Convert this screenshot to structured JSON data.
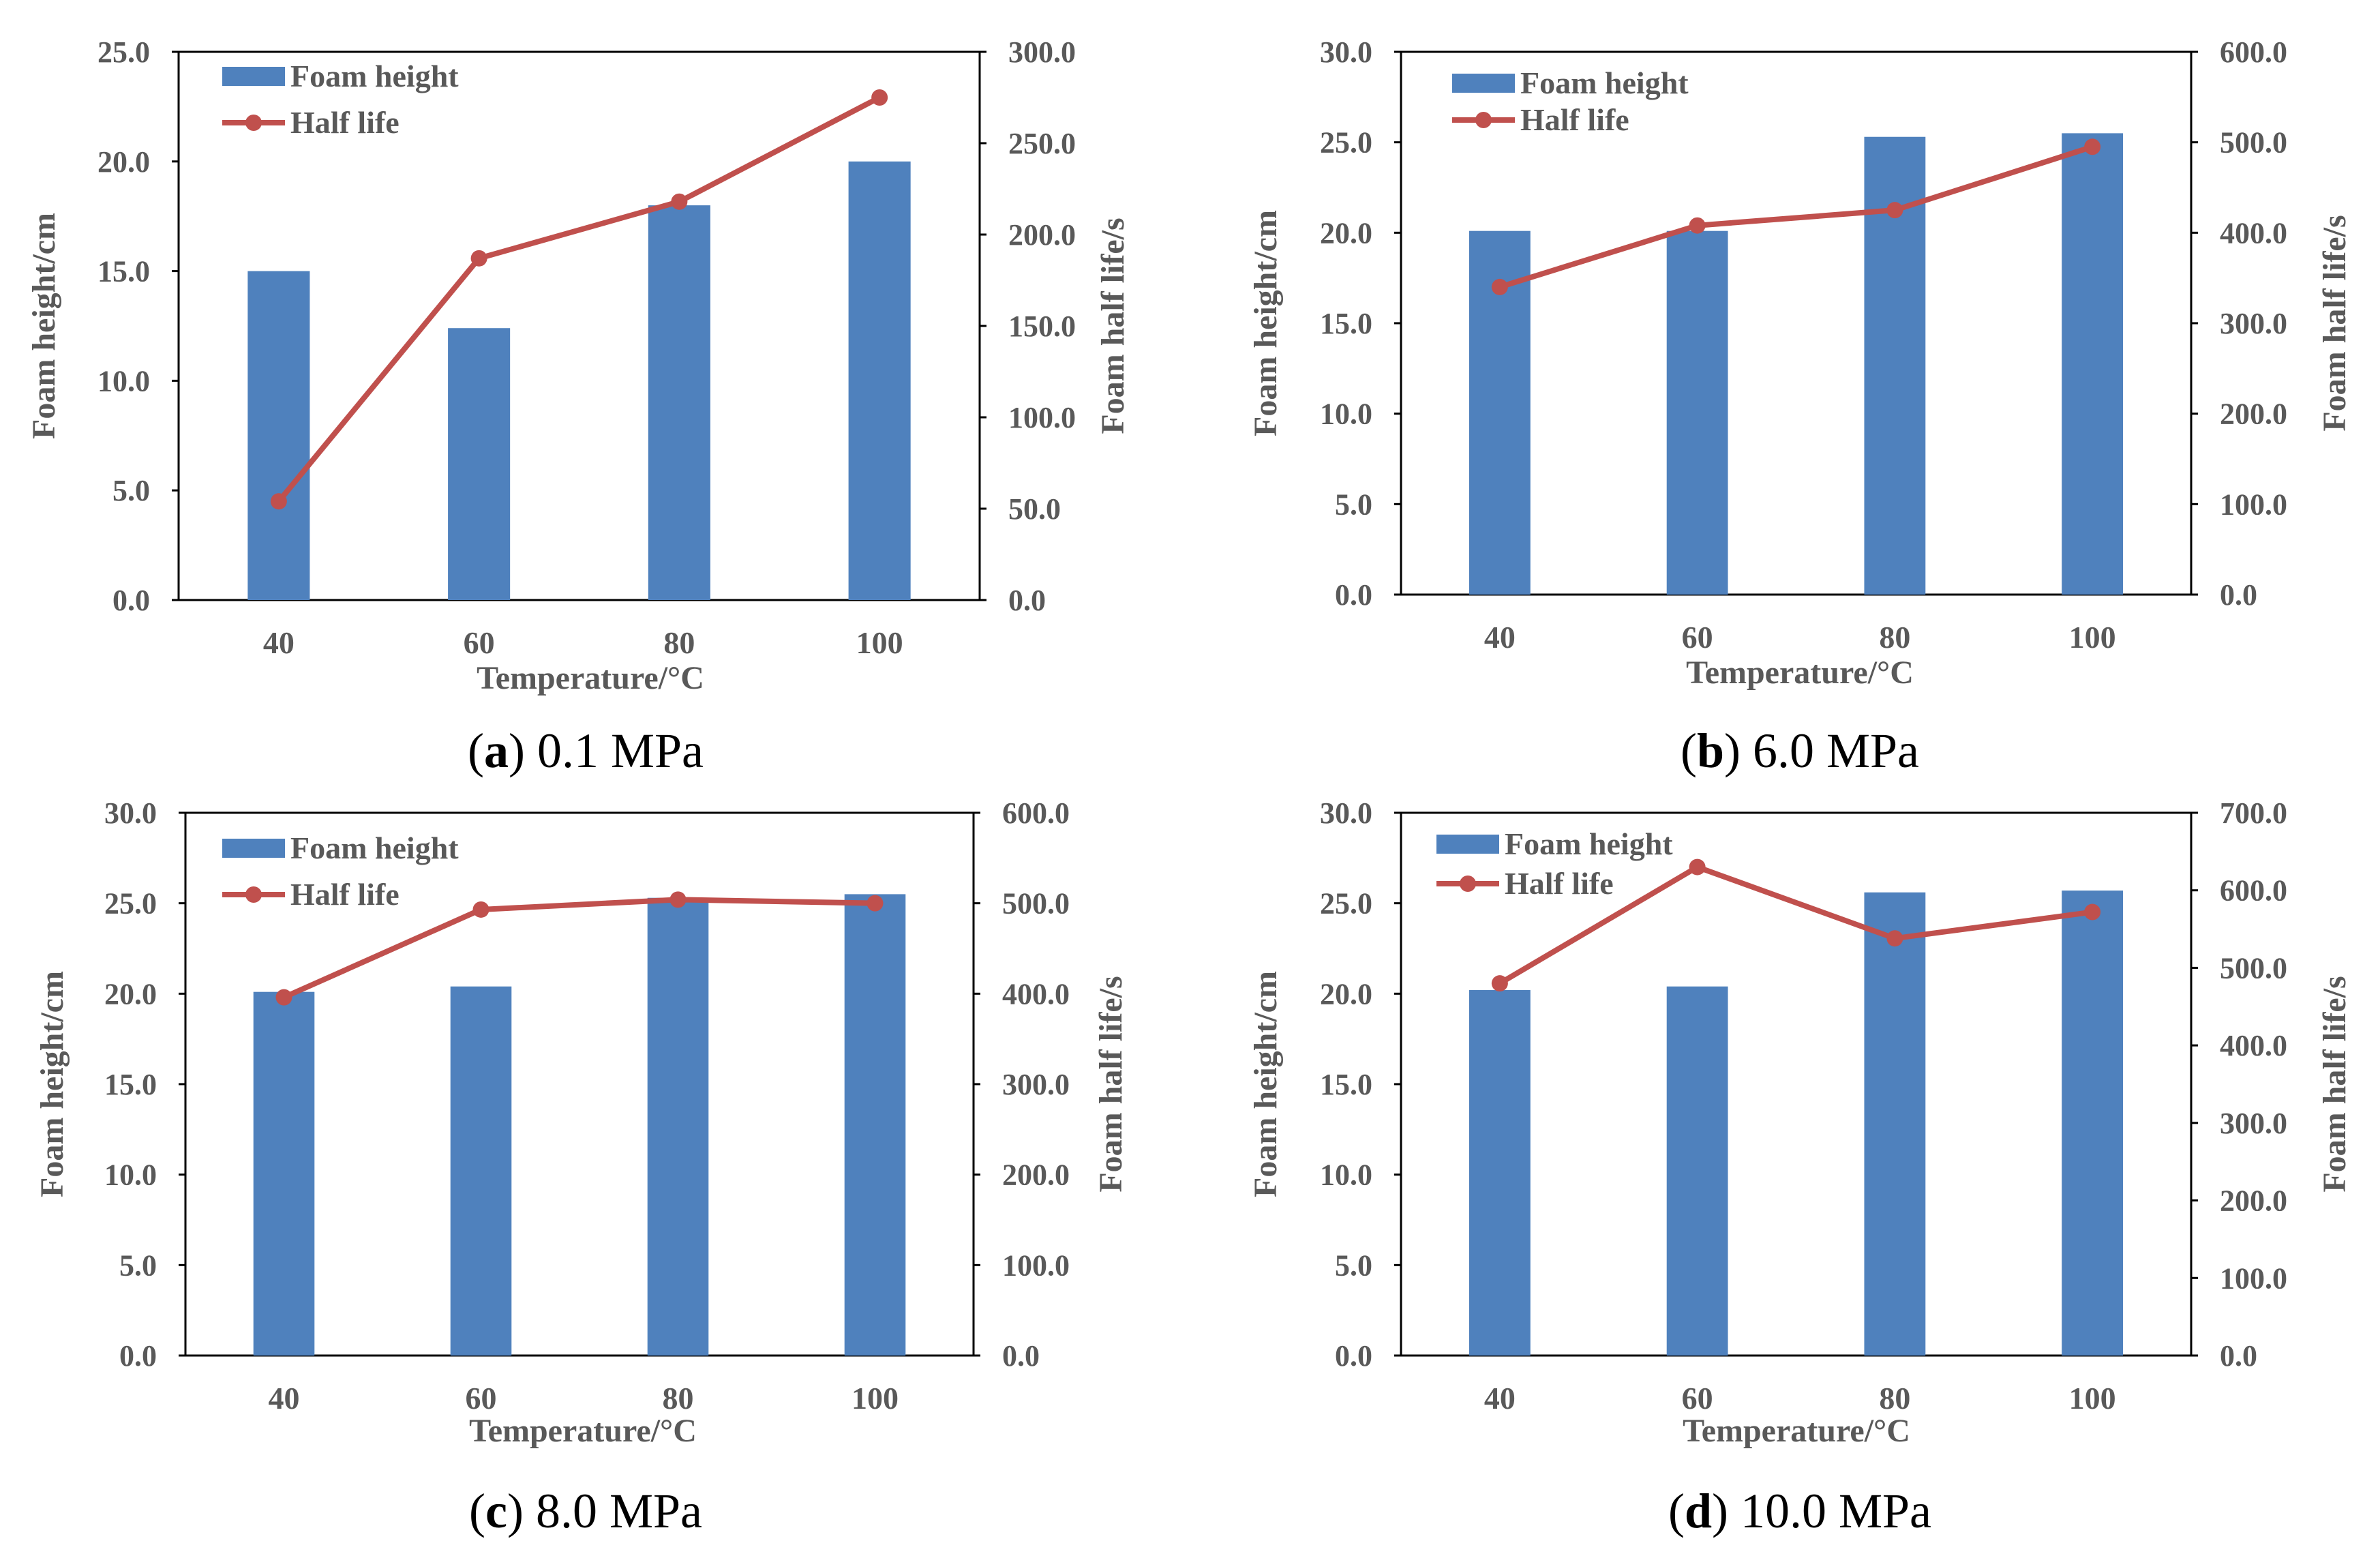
{
  "colors": {
    "bar": "#4F81BD",
    "line": "#C0504D",
    "axis": "#000000",
    "text": "#595959"
  },
  "charts": [
    {
      "id": "a",
      "caption_letter": "a",
      "caption_rest": " 0.1 MPa",
      "chart_data": {
        "type": "bar",
        "categories": [
          "40",
          "60",
          "80",
          "100"
        ],
        "series": [
          {
            "name": "Foam height",
            "kind": "bar",
            "axis": "left",
            "values": [
              15.0,
              12.4,
              18.0,
              20.0
            ]
          },
          {
            "name": "Half life",
            "kind": "line",
            "axis": "right",
            "values": [
              54,
              187,
              218,
              275
            ]
          }
        ],
        "xlabel": "Temperature/°C",
        "ylabel": "Foam height/cm",
        "y2label": "Foam half life/s",
        "ylim": [
          0,
          25
        ],
        "y2lim": [
          0,
          300
        ],
        "yticks": [
          "0.0",
          "5.0",
          "10.0",
          "15.0",
          "20.0",
          "25.0"
        ],
        "y2ticks": [
          "0.0",
          "50.0",
          "100.0",
          "150.0",
          "200.0",
          "250.0",
          "300.0"
        ],
        "legend": "top-left"
      }
    },
    {
      "id": "b",
      "caption_letter": "b",
      "caption_rest": " 6.0 MPa",
      "chart_data": {
        "type": "bar",
        "categories": [
          "40",
          "60",
          "80",
          "100"
        ],
        "series": [
          {
            "name": "Foam height",
            "kind": "bar",
            "axis": "left",
            "values": [
              20.1,
              20.1,
              25.3,
              25.5
            ]
          },
          {
            "name": "Half life",
            "kind": "line",
            "axis": "right",
            "values": [
              340,
              408,
              425,
              495
            ]
          }
        ],
        "xlabel": "Temperature/°C",
        "ylabel": "Foam height/cm",
        "y2label": "Foam half life/s",
        "ylim": [
          0,
          30
        ],
        "y2lim": [
          0,
          600
        ],
        "yticks": [
          "0.0",
          "5.0",
          "10.0",
          "15.0",
          "20.0",
          "25.0",
          "30.0"
        ],
        "y2ticks": [
          "0.0",
          "100.0",
          "200.0",
          "300.0",
          "400.0",
          "500.0",
          "600.0"
        ],
        "legend": "top-left"
      }
    },
    {
      "id": "c",
      "caption_letter": "c",
      "caption_rest": " 8.0 MPa",
      "chart_data": {
        "type": "bar",
        "categories": [
          "40",
          "60",
          "80",
          "100"
        ],
        "series": [
          {
            "name": "Foam height",
            "kind": "bar",
            "axis": "left",
            "values": [
              20.1,
              20.4,
              25.3,
              25.5
            ]
          },
          {
            "name": "Half life",
            "kind": "line",
            "axis": "right",
            "values": [
              396,
              493,
              504,
              500
            ]
          }
        ],
        "xlabel": "Temperature/°C",
        "ylabel": "Foam height/cm",
        "y2label": "Foam half life/s",
        "ylim": [
          0,
          30
        ],
        "y2lim": [
          0,
          600
        ],
        "yticks": [
          "0.0",
          "5.0",
          "10.0",
          "15.0",
          "20.0",
          "25.0",
          "30.0"
        ],
        "y2ticks": [
          "0.0",
          "100.0",
          "200.0",
          "300.0",
          "400.0",
          "500.0",
          "600.0"
        ],
        "legend": "top-left"
      }
    },
    {
      "id": "d",
      "caption_letter": "d",
      "caption_rest": " 10.0 MPa",
      "chart_data": {
        "type": "bar",
        "categories": [
          "40",
          "60",
          "80",
          "100"
        ],
        "series": [
          {
            "name": "Foam height",
            "kind": "bar",
            "axis": "left",
            "values": [
              20.2,
              20.4,
              25.6,
              25.7
            ]
          },
          {
            "name": "Half life",
            "kind": "line",
            "axis": "right",
            "values": [
              480,
              630,
              538,
              572
            ]
          }
        ],
        "xlabel": "Temperature/°C",
        "ylabel": "Foam height/cm",
        "y2label": "Foam half life/s",
        "ylim": [
          0,
          30
        ],
        "y2lim": [
          0,
          700
        ],
        "yticks": [
          "0.0",
          "5.0",
          "10.0",
          "15.0",
          "20.0",
          "25.0",
          "30.0"
        ],
        "y2ticks": [
          "0.0",
          "100.0",
          "200.0",
          "300.0",
          "400.0",
          "500.0",
          "600.0",
          "700.0"
        ],
        "legend": "top-left"
      }
    }
  ]
}
